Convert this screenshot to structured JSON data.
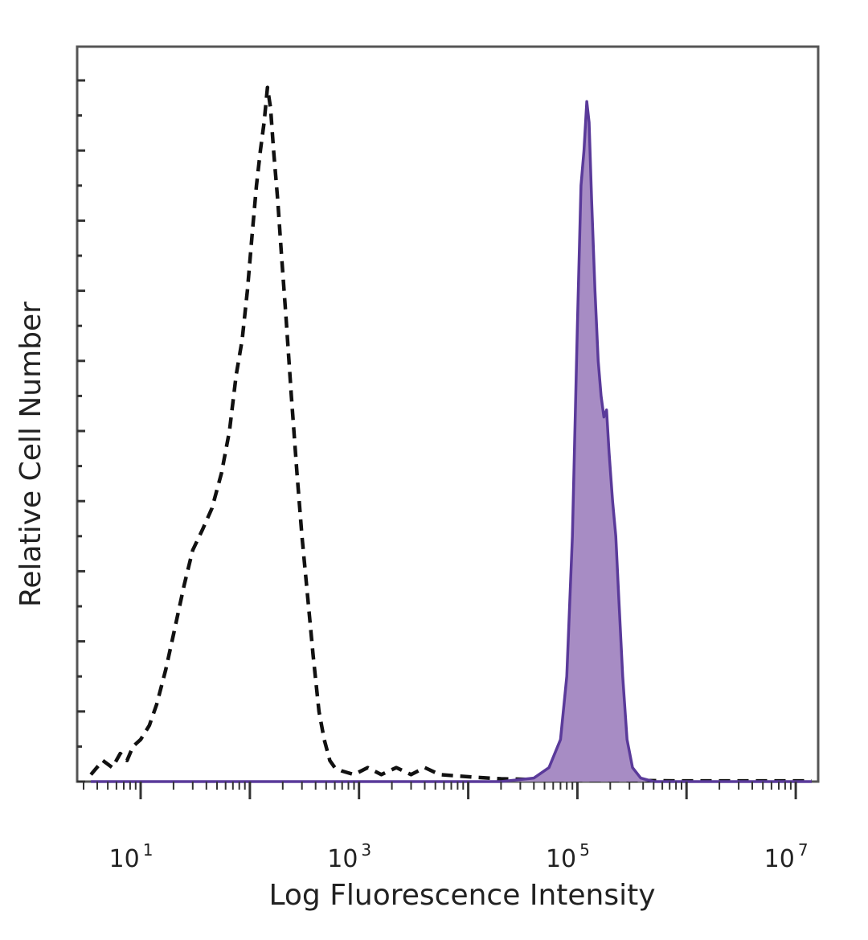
{
  "chart_data": {
    "type": "area",
    "title": "",
    "xlabel": "Log Fluorescence Intensity",
    "ylabel": "Relative Cell Number",
    "x_scale": "log10",
    "xlim": [
      3,
      15000000
    ],
    "ylim": [
      0,
      100
    ],
    "grid": false,
    "legend": "none",
    "x_ticks": [
      {
        "value": 10,
        "base": "10",
        "exp": "1"
      },
      {
        "value": 1000,
        "base": "10",
        "exp": "3"
      },
      {
        "value": 100000,
        "base": "10",
        "exp": "5"
      },
      {
        "value": 10000000,
        "base": "10",
        "exp": "7"
      }
    ],
    "series": [
      {
        "style": "dashed",
        "color": "#111111",
        "fill": "none",
        "points": [
          [
            3.5,
            1
          ],
          [
            4.5,
            3
          ],
          [
            5.5,
            2
          ],
          [
            6.5,
            4
          ],
          [
            7.5,
            3
          ],
          [
            8.5,
            5
          ],
          [
            10,
            6
          ],
          [
            12,
            8
          ],
          [
            14,
            11
          ],
          [
            17,
            16
          ],
          [
            20,
            21
          ],
          [
            25,
            28
          ],
          [
            30,
            33
          ],
          [
            37,
            36
          ],
          [
            45,
            39
          ],
          [
            55,
            44
          ],
          [
            65,
            50
          ],
          [
            75,
            58
          ],
          [
            85,
            63
          ],
          [
            95,
            70
          ],
          [
            105,
            78
          ],
          [
            115,
            85
          ],
          [
            125,
            90
          ],
          [
            135,
            94
          ],
          [
            145,
            99
          ],
          [
            155,
            96
          ],
          [
            165,
            90
          ],
          [
            180,
            83
          ],
          [
            195,
            75
          ],
          [
            215,
            66
          ],
          [
            240,
            55
          ],
          [
            270,
            44
          ],
          [
            300,
            35
          ],
          [
            340,
            26
          ],
          [
            380,
            18
          ],
          [
            430,
            10
          ],
          [
            480,
            6
          ],
          [
            540,
            3
          ],
          [
            600,
            2
          ],
          [
            700,
            1.5
          ],
          [
            900,
            1
          ],
          [
            1200,
            2
          ],
          [
            1600,
            1
          ],
          [
            2200,
            2
          ],
          [
            3000,
            1
          ],
          [
            4000,
            2
          ],
          [
            5500,
            1
          ],
          [
            8000,
            0.8
          ],
          [
            12000,
            0.6
          ],
          [
            20000,
            0.4
          ],
          [
            40000,
            0.3
          ],
          [
            80000,
            0.2
          ],
          [
            200000,
            0.2
          ],
          [
            800000,
            0.1
          ],
          [
            3000000,
            0.1
          ],
          [
            14000000,
            0.1
          ]
        ]
      },
      {
        "style": "solid",
        "color": "#5a3a9a",
        "fill": "#a78cc4",
        "points": [
          [
            3.5,
            0
          ],
          [
            1000,
            0
          ],
          [
            20000,
            0
          ],
          [
            40000,
            0.5
          ],
          [
            55000,
            2
          ],
          [
            70000,
            6
          ],
          [
            80000,
            15
          ],
          [
            90000,
            35
          ],
          [
            100000,
            65
          ],
          [
            108000,
            85
          ],
          [
            115000,
            90
          ],
          [
            122000,
            97
          ],
          [
            128000,
            94
          ],
          [
            135000,
            83
          ],
          [
            145000,
            70
          ],
          [
            155000,
            60
          ],
          [
            165000,
            55
          ],
          [
            175000,
            52
          ],
          [
            185000,
            53
          ],
          [
            195000,
            47
          ],
          [
            210000,
            40
          ],
          [
            225000,
            35
          ],
          [
            240000,
            26
          ],
          [
            260000,
            15
          ],
          [
            285000,
            6
          ],
          [
            320000,
            2
          ],
          [
            380000,
            0.5
          ],
          [
            500000,
            0
          ],
          [
            14000000,
            0
          ]
        ]
      }
    ]
  }
}
